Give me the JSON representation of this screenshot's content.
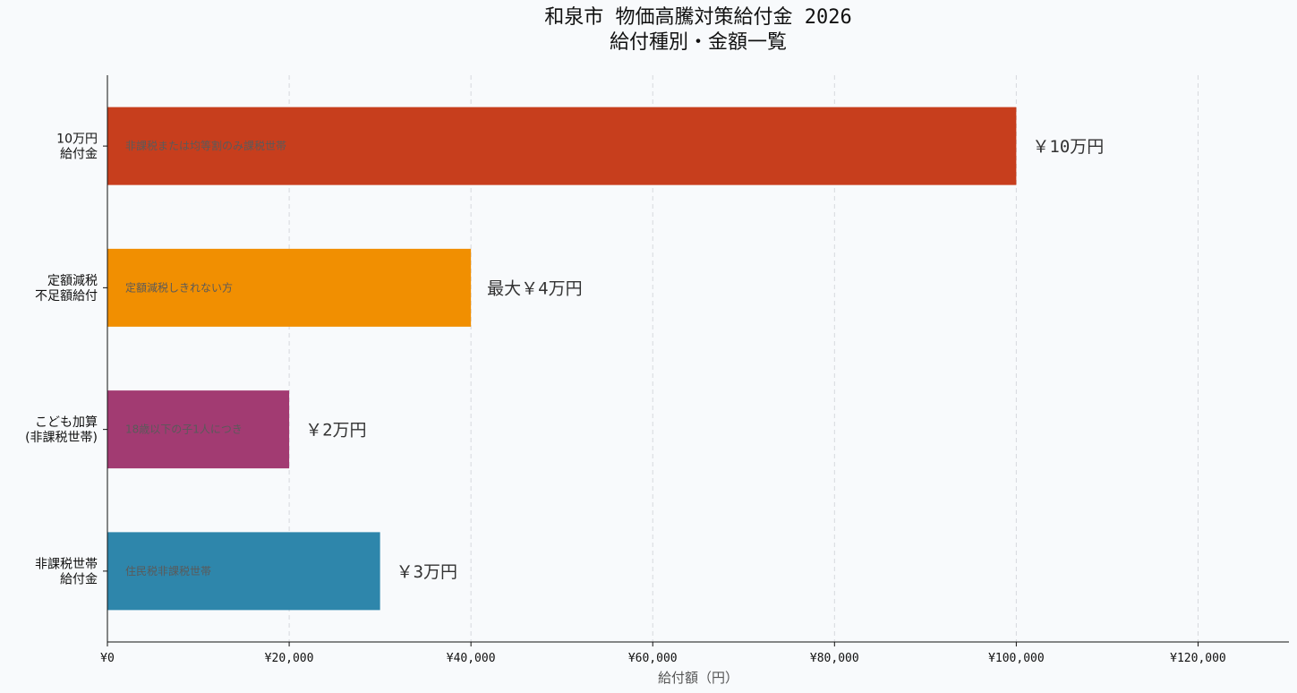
{
  "chart_data": {
    "type": "bar",
    "orientation": "horizontal",
    "title": [
      "和泉市 物価高騰対策給付金 2026",
      "給付種別・金額一覧"
    ],
    "xlabel": "給付額（円）",
    "ylabel": "",
    "xlim": [
      0,
      130000
    ],
    "xticks": [
      0,
      20000,
      40000,
      60000,
      80000,
      100000,
      120000
    ],
    "xtick_labels": [
      "¥0",
      "¥20,000",
      "¥40,000",
      "¥60,000",
      "¥80,000",
      "¥100,000",
      "¥120,000"
    ],
    "grid": "x-dashed",
    "categories": [
      [
        "10万円",
        "給付金"
      ],
      [
        "定額減税",
        "不足額給付"
      ],
      [
        "こども加算",
        "(非課税世帯)"
      ],
      [
        "非課税世帯",
        "給付金"
      ]
    ],
    "values": [
      100000,
      40000,
      20000,
      30000
    ],
    "value_labels": [
      "￥10万円",
      "最大￥4万円",
      "￥2万円",
      "￥3万円"
    ],
    "notes": [
      "非課税または均等割のみ課税世帯",
      "定額減税しきれない方",
      "18歳以下の子1人につき",
      "住民税非課税世帯"
    ],
    "colors": [
      "#c73e1d",
      "#f18f01",
      "#a23b72",
      "#2e86ab"
    ]
  }
}
